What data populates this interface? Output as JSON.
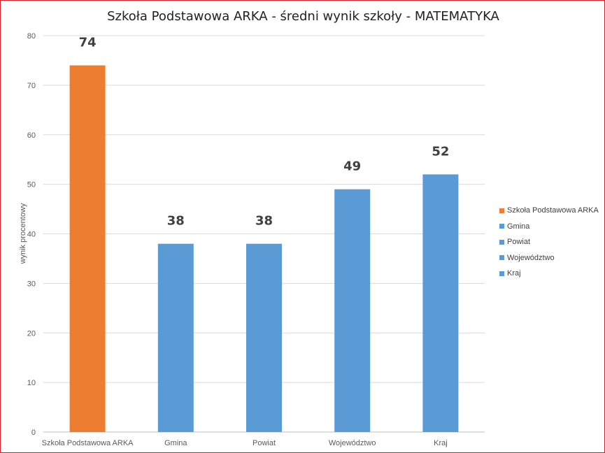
{
  "chart_data": {
    "type": "bar",
    "title": "Szkoła Podstawowa ARKA - średni wynik szkoły - MATEMATYKA",
    "ylabel": "wynik procentowy",
    "xlabel": "",
    "categories": [
      "Szkoła Podstawowa ARKA",
      "Gmina",
      "Powiat",
      "Województwo",
      "Kraj"
    ],
    "values": [
      74,
      38,
      38,
      49,
      52
    ],
    "colors": [
      "#ed7d31",
      "#5b9bd5",
      "#5b9bd5",
      "#5b9bd5",
      "#5b9bd5"
    ],
    "ylim": [
      0,
      80
    ],
    "yticks": [
      0,
      10,
      20,
      30,
      40,
      50,
      60,
      70,
      80
    ],
    "grid": true,
    "data_labels": true,
    "legend": {
      "placement": "right",
      "entries": [
        "Szkoła Podstawowa ARKA",
        "Gmina",
        "Powiat",
        "Województwo",
        "Kraj"
      ]
    }
  }
}
